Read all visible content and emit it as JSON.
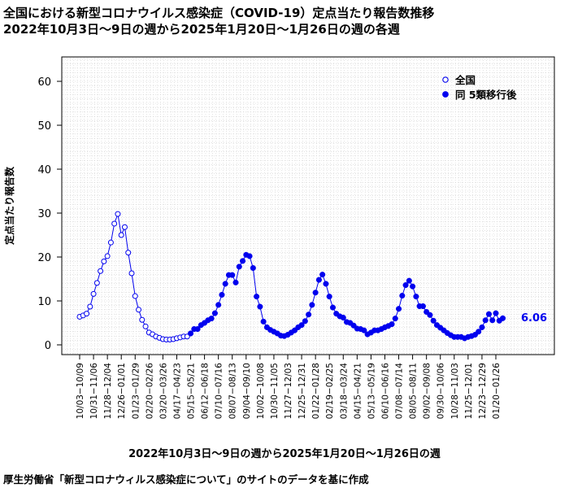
{
  "header": {
    "title_line1": "全国における新型コロナウイルス感染症（COVID-19）定点当たり報告数推移",
    "title_line2": "2022年10月3日～9日の週から2025年1月20日～1月26日の週の各週"
  },
  "footer": {
    "source": "厚生労働省「新型コロナウィルス感染症について」のサイトのデータを基に作成"
  },
  "chart_data": {
    "type": "scatter",
    "xlabel": "2022年10月3日～9日の週から2025年1月20日～1月26日の週",
    "ylabel": "定点当たり報告数",
    "ylim": [
      0,
      65
    ],
    "yticks": [
      0,
      10,
      20,
      30,
      40,
      50,
      60
    ],
    "grid": true,
    "legend_position": "top-right",
    "end_label": "6.06",
    "colors": {
      "series": "#0000ee",
      "grid": "#d0d0d0"
    },
    "series": [
      {
        "name": "全国",
        "marker": "open-circle",
        "values": [
          6.4,
          6.7,
          7.1,
          8.7,
          11.6,
          14.1,
          16.8,
          19.0,
          20.2,
          23.3,
          27.6,
          29.8,
          25.0,
          26.8,
          21.0,
          16.3,
          11.1,
          8.0,
          5.7,
          4.2,
          2.8,
          2.4,
          1.9,
          1.6,
          1.3,
          1.2,
          1.2,
          1.3,
          1.5,
          1.7,
          1.9,
          1.9
        ]
      },
      {
        "name": "同 5類移行後",
        "marker": "filled-circle",
        "values": [
          2.6,
          3.6,
          3.6,
          4.5,
          5.0,
          5.6,
          6.0,
          7.2,
          9.1,
          11.4,
          13.9,
          15.9,
          15.9,
          14.2,
          17.8,
          19.1,
          20.5,
          20.2,
          17.5,
          11.0,
          8.7,
          5.3,
          4.0,
          3.4,
          3.0,
          2.6,
          2.1,
          2.0,
          2.3,
          2.8,
          3.3,
          4.0,
          4.5,
          5.4,
          6.9,
          9.1,
          11.9,
          14.8,
          16.0,
          13.9,
          11.0,
          8.5,
          7.1,
          6.5,
          6.2,
          5.2,
          5.0,
          4.4,
          3.7,
          3.6,
          3.3,
          2.4,
          2.8,
          3.3,
          3.3,
          3.6,
          4.0,
          4.3,
          4.7,
          6.0,
          8.2,
          11.2,
          13.6,
          14.6,
          13.3,
          11.0,
          8.8,
          8.8,
          7.5,
          6.8,
          5.5,
          4.5,
          3.9,
          3.3,
          2.7,
          2.2,
          1.8,
          1.8,
          1.8,
          1.5,
          1.8,
          2.0,
          2.3,
          3.0,
          4.0,
          5.6,
          7.0,
          5.6,
          7.2,
          5.5,
          6.06
        ]
      }
    ],
    "xtick_labels": [
      "10/03−10/09",
      "10/31−11/06",
      "11/28−12/04",
      "12/26−01/01",
      "01/23−01/29",
      "02/20−02/26",
      "03/20−03/26",
      "04/17−04/23",
      "05/15−05/21",
      "06/12−06/18",
      "07/10−07/16",
      "08/07−08/13",
      "09/04−09/10",
      "10/02−10/08",
      "10/30−11/05",
      "11/27−12/03",
      "12/25−12/31",
      "01/22−01/28",
      "02/19−02/25",
      "03/18−03/24",
      "04/15−04/21",
      "05/13−05/19",
      "06/10−06/16",
      "07/08−07/14",
      "08/05−08/11",
      "09/02−09/08",
      "09/30−10/06",
      "10/28−11/03",
      "11/25−12/01",
      "12/23−12/29",
      "01/20−01/26"
    ]
  }
}
